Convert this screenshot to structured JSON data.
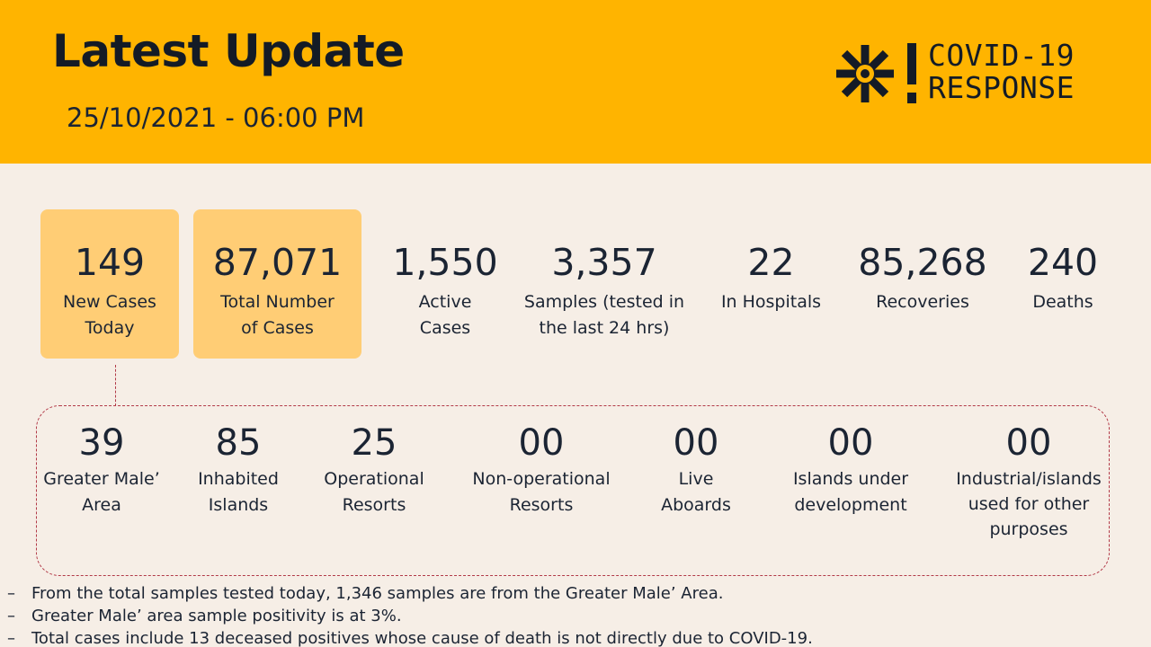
{
  "header": {
    "title": "Latest Update",
    "datetime": "25/10/2021  -  06:00 PM",
    "logo_line1": "COVID-19",
    "logo_line2": "RESPONSE",
    "background_color": "#FFB400"
  },
  "stats": [
    {
      "value": "149",
      "label_lines": [
        "New Cases",
        "Today"
      ],
      "highlighted": true
    },
    {
      "value": "87,071",
      "label_lines": [
        "Total Number",
        "of Cases"
      ],
      "highlighted": true
    },
    {
      "value": "1,550",
      "label_lines": [
        "Active",
        "Cases"
      ],
      "highlighted": false
    },
    {
      "value": "3,357",
      "label_lines": [
        "Samples (tested in",
        "the last 24 hrs)"
      ],
      "highlighted": false
    },
    {
      "value": "22",
      "label_lines": [
        "In Hospitals"
      ],
      "highlighted": false
    },
    {
      "value": "85,268",
      "label_lines": [
        "Recoveries"
      ],
      "highlighted": false
    },
    {
      "value": "240",
      "label_lines": [
        "Deaths"
      ],
      "highlighted": false
    }
  ],
  "breakdown": [
    {
      "value": "39",
      "label_lines": [
        "Greater Male’",
        "Area"
      ]
    },
    {
      "value": "85",
      "label_lines": [
        "Inhabited",
        "Islands"
      ]
    },
    {
      "value": "25",
      "label_lines": [
        "Operational",
        "Resorts"
      ]
    },
    {
      "value": "00",
      "label_lines": [
        "Non-operational",
        "Resorts"
      ]
    },
    {
      "value": "00",
      "label_lines": [
        "Live",
        "Aboards"
      ]
    },
    {
      "value": "00",
      "label_lines": [
        "Islands under",
        "development"
      ]
    },
    {
      "value": "00",
      "label_lines": [
        "Industrial/islands",
        "used for other",
        "purposes"
      ]
    }
  ],
  "notes": [
    {
      "bullet": "–",
      "text": "From the total samples tested today, 1,346 samples are from the Greater Male’ Area."
    },
    {
      "bullet": "–",
      "text": "Greater Male’ area sample positivity is at 3%."
    },
    {
      "bullet": "–",
      "text": "Total cases include 13 deceased positives whose cause of death is not directly due to COVID-19."
    }
  ],
  "colors": {
    "accent": "#FFB400",
    "card": "#FFCD75",
    "background": "#F6EEE6",
    "dashed_border": "#B23A48",
    "text": "#1B2433"
  },
  "icons": {
    "logo": "asterisk-burst-icon",
    "logo_exclamation": "exclamation-icon"
  }
}
